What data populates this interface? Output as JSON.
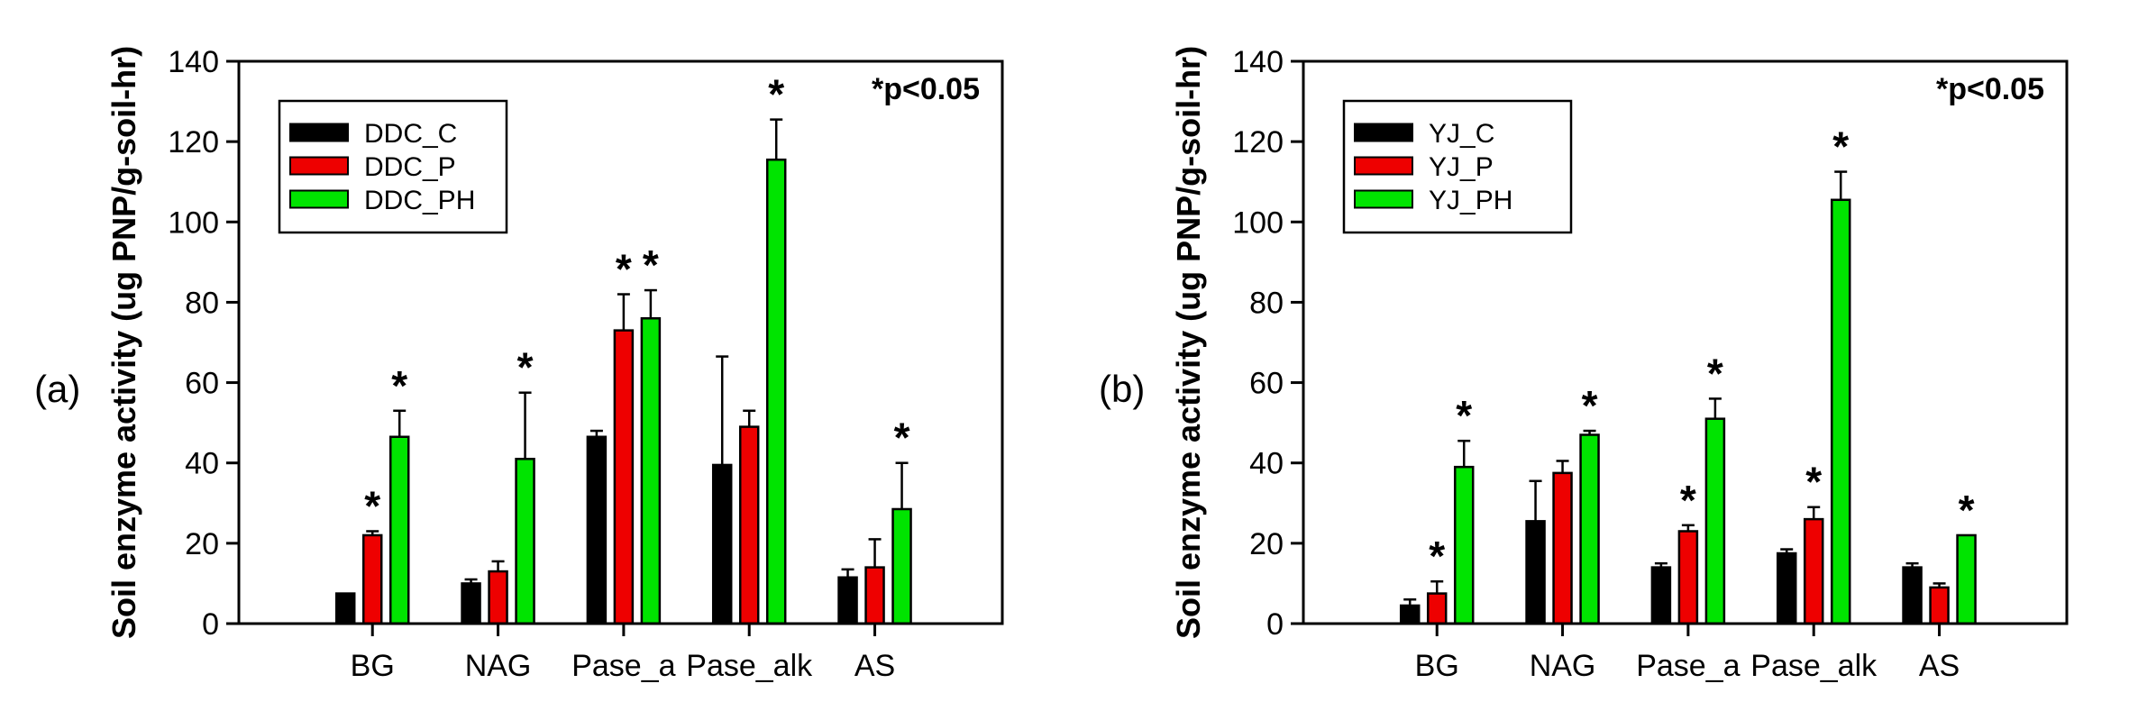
{
  "figure": {
    "ylabel": "Soil enzyme activity (ug PNP/g-soil-hr)",
    "sig_note": "*p<0.05",
    "categories": [
      "BG",
      "NAG",
      "Pase_a",
      "Pase_alk",
      "AS"
    ],
    "yticks": [
      0,
      20,
      40,
      60,
      80,
      100,
      120,
      140
    ],
    "ylim": [
      0,
      140
    ],
    "series_colors": {
      "control": "#000000",
      "p": "#ee0000",
      "ph": "#00e400"
    },
    "asterisk": "*"
  },
  "chart_data": [
    {
      "type": "bar",
      "panel_label": "(a)",
      "title": "",
      "xlabel": "",
      "ylabel": "Soil enzyme activity (ug PNP/g-soil-hr)",
      "annotation": "*p<0.05",
      "legend_position": "upper-left",
      "grid": false,
      "ylim": [
        0,
        140
      ],
      "yticks": [
        0,
        20,
        40,
        60,
        80,
        100,
        120,
        140
      ],
      "categories": [
        "BG",
        "NAG",
        "Pase_a",
        "Pase_alk",
        "AS"
      ],
      "series": [
        {
          "name": "DDC_C",
          "color": "#000000",
          "values": [
            7.5,
            10,
            46.5,
            39.5,
            11.5
          ],
          "errors": [
            0,
            1,
            1.5,
            27,
            2
          ],
          "sig": [
            false,
            false,
            false,
            false,
            false
          ]
        },
        {
          "name": "DDC_P",
          "color": "#ee0000",
          "values": [
            22,
            13,
            73,
            49,
            14
          ],
          "errors": [
            1,
            2.5,
            9,
            4,
            7
          ],
          "sig": [
            true,
            false,
            true,
            false,
            false
          ]
        },
        {
          "name": "DDC_PH",
          "color": "#00e400",
          "values": [
            46.5,
            41,
            76,
            115.5,
            28.5
          ],
          "errors": [
            6.5,
            16.5,
            7,
            10,
            11.5
          ],
          "sig": [
            true,
            true,
            true,
            true,
            true
          ]
        }
      ]
    },
    {
      "type": "bar",
      "panel_label": "(b)",
      "title": "",
      "xlabel": "",
      "ylabel": "Soil enzyme activity (ug PNP/g-soil-hr)",
      "annotation": "*p<0.05",
      "legend_position": "upper-left",
      "grid": false,
      "ylim": [
        0,
        140
      ],
      "yticks": [
        0,
        20,
        40,
        60,
        80,
        100,
        120,
        140
      ],
      "categories": [
        "BG",
        "NAG",
        "Pase_a",
        "Pase_alk",
        "AS"
      ],
      "series": [
        {
          "name": "YJ_C",
          "color": "#000000",
          "values": [
            4.5,
            25.5,
            14,
            17.5,
            14
          ],
          "errors": [
            1.5,
            10,
            1,
            1,
            1
          ],
          "sig": [
            false,
            false,
            false,
            false,
            false
          ]
        },
        {
          "name": "YJ_P",
          "color": "#ee0000",
          "values": [
            7.5,
            37.5,
            23,
            26,
            9
          ],
          "errors": [
            3,
            3,
            1.5,
            3,
            1
          ],
          "sig": [
            true,
            false,
            true,
            true,
            false
          ]
        },
        {
          "name": "YJ_PH",
          "color": "#00e400",
          "values": [
            39,
            47,
            51,
            105.5,
            22
          ],
          "errors": [
            6.5,
            1,
            5,
            7,
            0
          ],
          "sig": [
            true,
            true,
            true,
            true,
            true
          ]
        }
      ]
    }
  ]
}
